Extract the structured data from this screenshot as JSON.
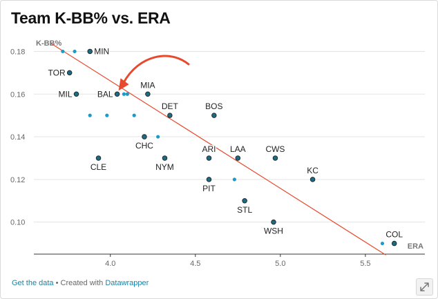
{
  "chart_data": {
    "type": "scatter",
    "title": "Team K-BB% vs. ERA",
    "xlabel": "ERA",
    "ylabel": "K-BB%",
    "xlim": [
      3.55,
      5.85
    ],
    "ylim": [
      0.085,
      0.185
    ],
    "x_ticks": [
      4.0,
      4.5,
      5.0,
      5.5
    ],
    "x_tick_labels": [
      "4.0",
      "4.5",
      "5.0",
      "5.5"
    ],
    "y_ticks": [
      0.1,
      0.12,
      0.14,
      0.16,
      0.18
    ],
    "y_tick_labels": [
      "0.10",
      "0.12",
      "0.14",
      "0.16",
      "0.18"
    ],
    "grid": "horizontal",
    "labeled_points": [
      {
        "label": "MIN",
        "x": 3.88,
        "y": 0.18,
        "pos": "right"
      },
      {
        "label": "TOR",
        "x": 3.76,
        "y": 0.17,
        "pos": "left"
      },
      {
        "label": "MIL",
        "x": 3.8,
        "y": 0.16,
        "pos": "left"
      },
      {
        "label": "BAL",
        "x": 4.04,
        "y": 0.16,
        "pos": "left"
      },
      {
        "label": "MIA",
        "x": 4.22,
        "y": 0.16,
        "pos": "top"
      },
      {
        "label": "DET",
        "x": 4.35,
        "y": 0.15,
        "pos": "top"
      },
      {
        "label": "BOS",
        "x": 4.61,
        "y": 0.15,
        "pos": "top"
      },
      {
        "label": "CHC",
        "x": 4.2,
        "y": 0.14,
        "pos": "bottom"
      },
      {
        "label": "CLE",
        "x": 3.93,
        "y": 0.13,
        "pos": "bottom"
      },
      {
        "label": "NYM",
        "x": 4.32,
        "y": 0.13,
        "pos": "bottom"
      },
      {
        "label": "ARI",
        "x": 4.58,
        "y": 0.13,
        "pos": "top"
      },
      {
        "label": "LAA",
        "x": 4.75,
        "y": 0.13,
        "pos": "top"
      },
      {
        "label": "CWS",
        "x": 4.97,
        "y": 0.13,
        "pos": "top"
      },
      {
        "label": "PIT",
        "x": 4.58,
        "y": 0.12,
        "pos": "bottom"
      },
      {
        "label": "KC",
        "x": 5.19,
        "y": 0.12,
        "pos": "top"
      },
      {
        "label": "STL",
        "x": 4.79,
        "y": 0.11,
        "pos": "bottom"
      },
      {
        "label": "WSH",
        "x": 4.96,
        "y": 0.1,
        "pos": "bottom"
      },
      {
        "label": "COL",
        "x": 5.67,
        "y": 0.09,
        "pos": "top"
      }
    ],
    "unlabeled_points": [
      {
        "x": 3.72,
        "y": 0.18
      },
      {
        "x": 3.79,
        "y": 0.18
      },
      {
        "x": 3.88,
        "y": 0.15
      },
      {
        "x": 3.98,
        "y": 0.15
      },
      {
        "x": 4.14,
        "y": 0.15
      },
      {
        "x": 4.08,
        "y": 0.16
      },
      {
        "x": 4.1,
        "y": 0.16
      },
      {
        "x": 4.28,
        "y": 0.14
      },
      {
        "x": 4.73,
        "y": 0.12
      },
      {
        "x": 5.6,
        "y": 0.09
      }
    ],
    "trendline": {
      "x": [
        3.65,
        5.62
      ],
      "y": [
        0.1838,
        0.0846
      ]
    },
    "annotation": {
      "type": "arrow",
      "points_to": "BAL"
    }
  },
  "footer": {
    "get_data": "Get the data",
    "separator": " • Created with ",
    "tool": "Datawrapper"
  },
  "icons": {
    "resize": "expand-diagonal-icon"
  },
  "colors": {
    "trendline": "#e8492e",
    "annotation_arrow": "#e8492e",
    "labeled_point": "#1c6b82",
    "unlabeled_point": "#1f9ac6",
    "link": "#1d81a2"
  }
}
